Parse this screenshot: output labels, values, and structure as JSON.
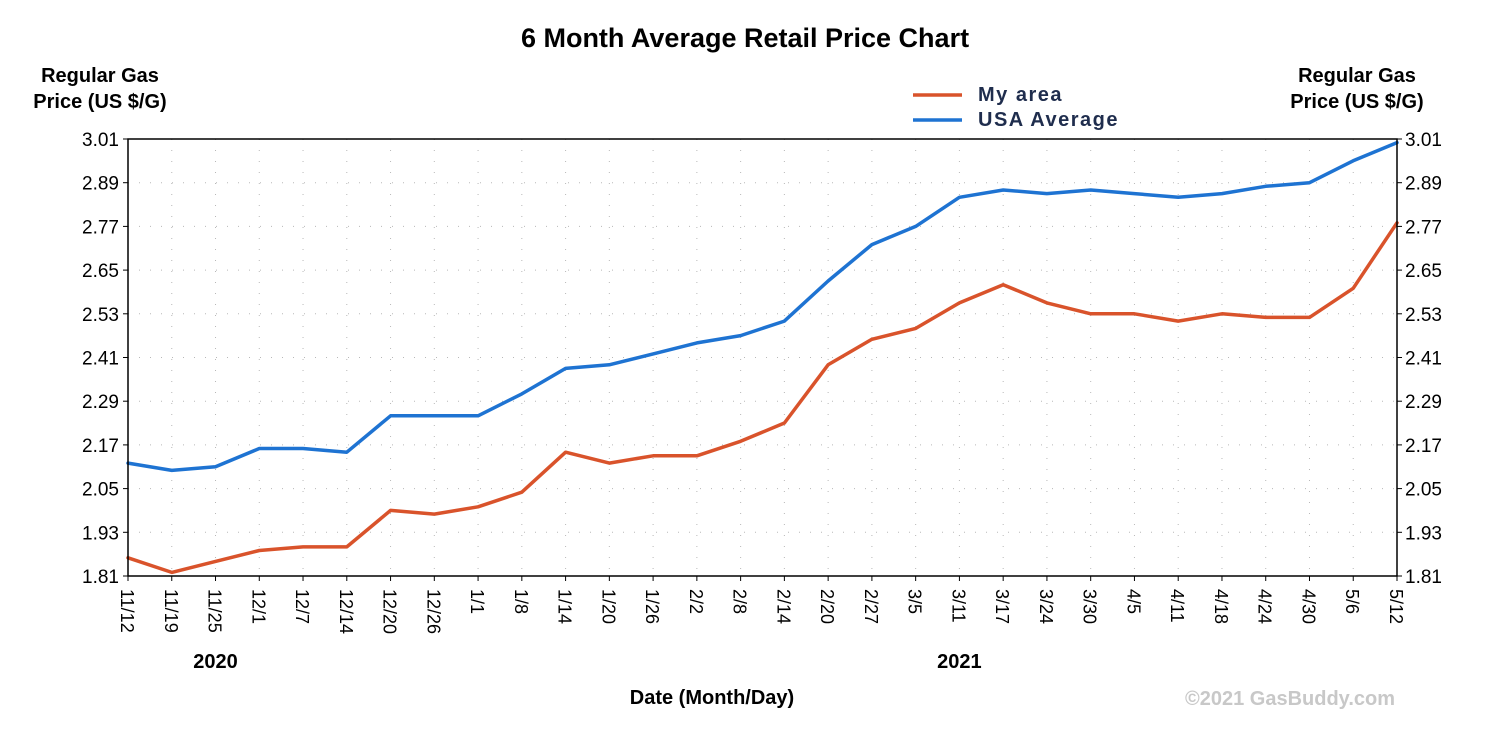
{
  "chart_data": {
    "type": "line",
    "title": "6 Month Average Retail Price Chart",
    "y_axis_label_left": [
      "Regular Gas",
      "Price (US $/G)"
    ],
    "y_axis_label_right": [
      "Regular Gas",
      "Price (US $/G)"
    ],
    "xlabel": "Date (Month/Day)",
    "ylim": [
      1.81,
      3.01
    ],
    "y_ticks": [
      "3.01",
      "2.89",
      "2.77",
      "2.65",
      "2.53",
      "2.41",
      "2.29",
      "2.17",
      "2.05",
      "1.93",
      "1.81"
    ],
    "x_ticks": [
      "11/12",
      "11/19",
      "11/25",
      "12/1",
      "12/7",
      "12/14",
      "12/20",
      "12/26",
      "1/1",
      "1/8",
      "1/14",
      "1/20",
      "1/26",
      "2/2",
      "2/8",
      "2/14",
      "2/20",
      "2/27",
      "3/5",
      "3/11",
      "3/17",
      "3/24",
      "3/30",
      "4/5",
      "4/11",
      "4/18",
      "4/24",
      "4/30",
      "5/6",
      "5/12"
    ],
    "year_labels": [
      {
        "label": "2020",
        "at_tick": "11/25"
      },
      {
        "label": "2021",
        "at_tick": "3/11"
      }
    ],
    "grid": true,
    "legend_position": "top-right",
    "series": [
      {
        "name": "My area",
        "color": "#d9532b",
        "x": [
          "11/12",
          "11/19",
          "11/25",
          "12/1",
          "12/7",
          "12/14",
          "12/20",
          "12/26",
          "1/1",
          "1/8",
          "1/14",
          "1/20",
          "1/26",
          "2/2",
          "2/8",
          "2/14",
          "2/20",
          "2/27",
          "3/5",
          "3/11",
          "3/17",
          "3/24",
          "3/30",
          "4/5",
          "4/11",
          "4/18",
          "4/24",
          "4/30",
          "5/6",
          "5/12"
        ],
        "values": [
          1.86,
          1.82,
          1.85,
          1.88,
          1.89,
          1.89,
          1.99,
          1.98,
          2.0,
          2.04,
          2.15,
          2.12,
          2.14,
          2.14,
          2.18,
          2.23,
          2.39,
          2.46,
          2.49,
          2.56,
          2.61,
          2.56,
          2.53,
          2.53,
          2.51,
          2.53,
          2.52,
          2.52,
          2.6,
          2.78
        ]
      },
      {
        "name": "USA Average",
        "color": "#1e73d2",
        "x": [
          "11/12",
          "11/19",
          "11/25",
          "12/1",
          "12/7",
          "12/14",
          "12/20",
          "12/26",
          "1/1",
          "1/8",
          "1/14",
          "1/20",
          "1/26",
          "2/2",
          "2/8",
          "2/14",
          "2/20",
          "2/27",
          "3/5",
          "3/11",
          "3/17",
          "3/24",
          "3/30",
          "4/5",
          "4/11",
          "4/18",
          "4/24",
          "4/30",
          "5/6",
          "5/12"
        ],
        "values": [
          2.12,
          2.1,
          2.11,
          2.16,
          2.16,
          2.15,
          2.25,
          2.25,
          2.25,
          2.31,
          2.38,
          2.39,
          2.42,
          2.45,
          2.47,
          2.51,
          2.62,
          2.72,
          2.77,
          2.85,
          2.87,
          2.86,
          2.87,
          2.86,
          2.85,
          2.86,
          2.88,
          2.89,
          2.95,
          3.0
        ]
      }
    ],
    "copyright": "©2021 GasBuddy.com"
  }
}
